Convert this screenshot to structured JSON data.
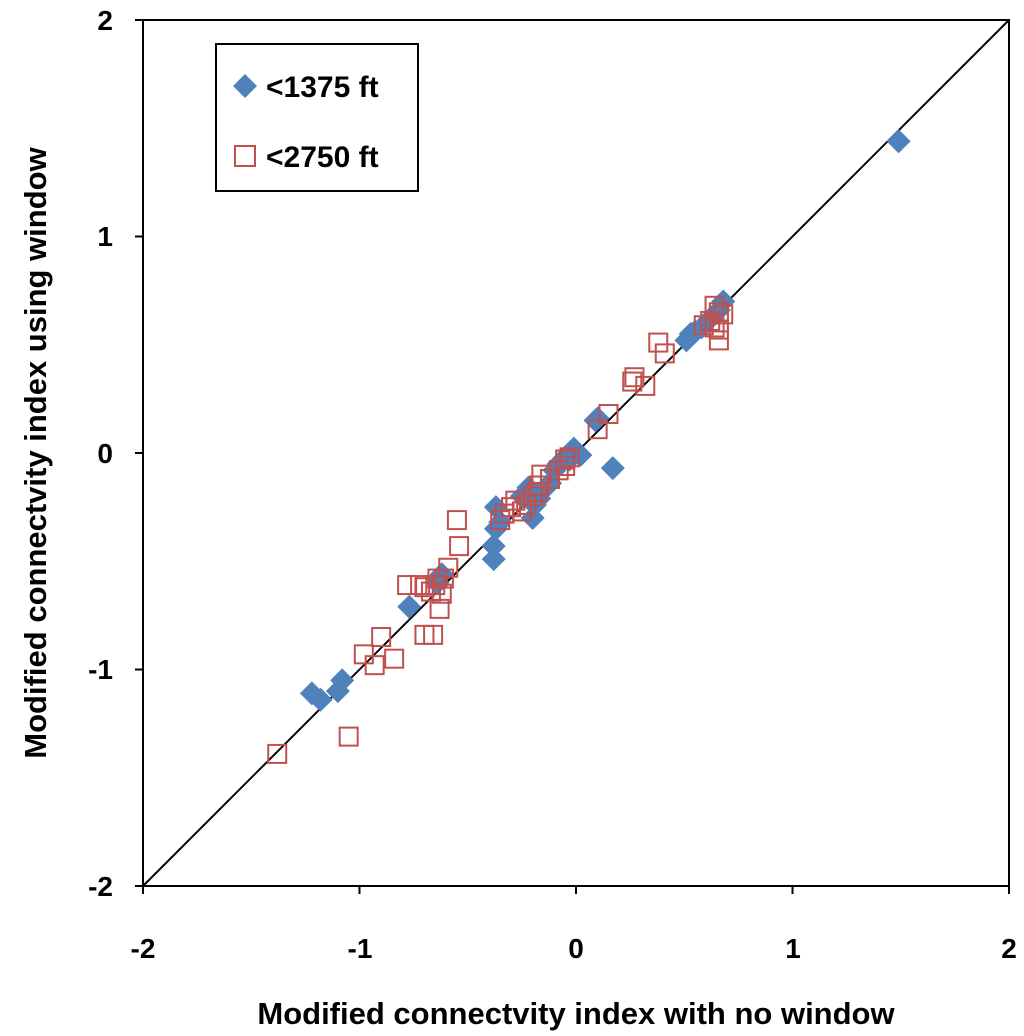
{
  "chart_data": {
    "type": "scatter",
    "title": "",
    "xlabel": "Modified connectvity index with no window",
    "ylabel": "Modified connectvity index using window",
    "xlim": [
      -2,
      2
    ],
    "ylim": [
      -2,
      2
    ],
    "x_ticks": [
      "-2",
      "-1",
      "0",
      "1",
      "2"
    ],
    "y_ticks": [
      "2",
      "1",
      "0",
      "-1",
      "-2"
    ],
    "x_tick_values": [
      -2,
      -1,
      0,
      1,
      2
    ],
    "y_tick_values": [
      2,
      1,
      0,
      -1,
      -2
    ],
    "grid": false,
    "legend_position": "top-left",
    "reference_line": {
      "label": "1:1 line",
      "from": [
        -2,
        -2
      ],
      "to": [
        2,
        2
      ],
      "color": "#000000"
    },
    "series": [
      {
        "name": "<1375 ft",
        "marker": "filled-diamond",
        "color": "#4F81BD",
        "points": [
          [
            1.49,
            1.44
          ],
          [
            0.68,
            0.7
          ],
          [
            0.66,
            0.66
          ],
          [
            0.62,
            0.62
          ],
          [
            0.58,
            0.58
          ],
          [
            0.55,
            0.56
          ],
          [
            0.53,
            0.55
          ],
          [
            0.51,
            0.52
          ],
          [
            0.1,
            0.16
          ],
          [
            0.09,
            0.15
          ],
          [
            0.17,
            -0.07
          ],
          [
            0.02,
            -0.01
          ],
          [
            -0.01,
            0.02
          ],
          [
            -0.03,
            -0.03
          ],
          [
            -0.05,
            -0.02
          ],
          [
            -0.08,
            -0.05
          ],
          [
            -0.1,
            -0.08
          ],
          [
            -0.12,
            -0.14
          ],
          [
            -0.15,
            -0.17
          ],
          [
            -0.17,
            -0.21
          ],
          [
            -0.19,
            -0.24
          ],
          [
            -0.2,
            -0.3
          ],
          [
            -0.22,
            -0.16
          ],
          [
            -0.25,
            -0.2
          ],
          [
            -0.37,
            -0.25
          ],
          [
            -0.37,
            -0.35
          ],
          [
            -0.38,
            -0.43
          ],
          [
            -0.38,
            -0.49
          ],
          [
            -0.35,
            -0.32
          ],
          [
            -0.62,
            -0.56
          ],
          [
            -0.64,
            -0.6
          ],
          [
            -0.77,
            -0.71
          ],
          [
            -1.08,
            -1.05
          ],
          [
            -1.1,
            -1.1
          ],
          [
            -1.18,
            -1.14
          ],
          [
            -1.22,
            -1.11
          ]
        ]
      },
      {
        "name": "<2750 ft",
        "marker": "hollow-square",
        "color": "#C0504D",
        "points": [
          [
            0.64,
            0.68
          ],
          [
            0.66,
            0.65
          ],
          [
            0.68,
            0.64
          ],
          [
            0.62,
            0.61
          ],
          [
            0.64,
            0.58
          ],
          [
            0.66,
            0.57
          ],
          [
            0.59,
            0.59
          ],
          [
            0.66,
            0.52
          ],
          [
            0.38,
            0.51
          ],
          [
            0.41,
            0.46
          ],
          [
            0.27,
            0.35
          ],
          [
            0.26,
            0.33
          ],
          [
            0.32,
            0.31
          ],
          [
            0.15,
            0.18
          ],
          [
            0.1,
            0.11
          ],
          [
            -0.03,
            -0.02
          ],
          [
            -0.05,
            -0.03
          ],
          [
            -0.05,
            -0.06
          ],
          [
            -0.08,
            -0.08
          ],
          [
            -0.12,
            -0.12
          ],
          [
            -0.16,
            -0.1
          ],
          [
            -0.17,
            -0.15
          ],
          [
            -0.18,
            -0.18
          ],
          [
            -0.2,
            -0.2
          ],
          [
            -0.23,
            -0.24
          ],
          [
            -0.25,
            -0.27
          ],
          [
            -0.28,
            -0.22
          ],
          [
            -0.3,
            -0.25
          ],
          [
            -0.33,
            -0.28
          ],
          [
            -0.35,
            -0.31
          ],
          [
            -0.55,
            -0.31
          ],
          [
            -0.54,
            -0.43
          ],
          [
            -0.59,
            -0.53
          ],
          [
            -0.61,
            -0.58
          ],
          [
            -0.64,
            -0.58
          ],
          [
            -0.65,
            -0.61
          ],
          [
            -0.67,
            -0.64
          ],
          [
            -0.62,
            -0.65
          ],
          [
            -0.63,
            -0.72
          ],
          [
            -0.7,
            -0.62
          ],
          [
            -0.72,
            -0.61
          ],
          [
            -0.78,
            -0.61
          ],
          [
            -0.66,
            -0.84
          ],
          [
            -0.7,
            -0.84
          ],
          [
            -0.84,
            -0.95
          ],
          [
            -0.9,
            -0.85
          ],
          [
            -0.93,
            -0.98
          ],
          [
            -0.98,
            -0.93
          ],
          [
            -1.05,
            -1.31
          ],
          [
            -1.38,
            -1.39
          ]
        ]
      }
    ]
  },
  "legend": {
    "items": [
      {
        "label": "<1375 ft",
        "color": "#4F81BD",
        "marker": "filled-diamond"
      },
      {
        "label": "<2750 ft",
        "color": "#C0504D",
        "marker": "hollow-square"
      }
    ]
  }
}
